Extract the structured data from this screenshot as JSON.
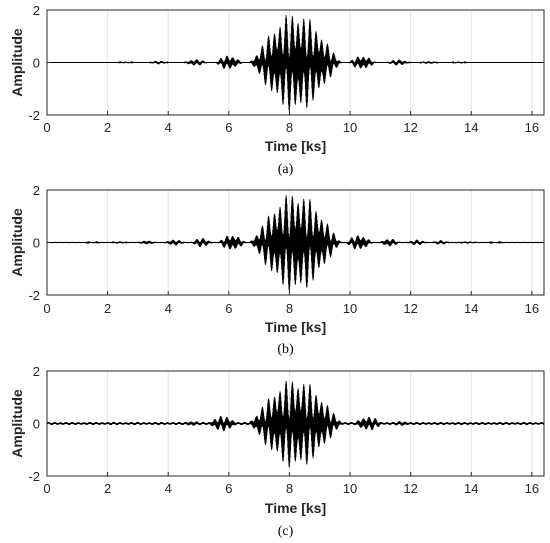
{
  "chart_data": [
    {
      "type": "line",
      "caption": "(a)",
      "xlabel": "Time [ks]",
      "ylabel": "Amplitude",
      "xlim": [
        0,
        16.4
      ],
      "ylim": [
        -2,
        2
      ],
      "xticks": [
        0,
        2,
        4,
        6,
        8,
        10,
        12,
        14,
        16
      ],
      "yticks": [
        -2,
        0,
        2
      ],
      "grid": true,
      "line_color": "#000000",
      "envelope": {
        "main_lobe": {
          "center": 8.2,
          "half_width": 1.55,
          "peak": 1.95
        },
        "side_lobes": [
          {
            "center": 6.0,
            "half_width": 0.45,
            "peak": 0.28
          },
          {
            "center": 10.4,
            "half_width": 0.45,
            "peak": 0.28
          },
          {
            "center": 4.9,
            "half_width": 0.4,
            "peak": 0.13
          },
          {
            "center": 11.6,
            "half_width": 0.4,
            "peak": 0.12
          },
          {
            "center": 3.7,
            "half_width": 0.35,
            "peak": 0.07
          },
          {
            "center": 12.6,
            "half_width": 0.35,
            "peak": 0.06
          },
          {
            "center": 2.6,
            "half_width": 0.3,
            "peak": 0.04
          },
          {
            "center": 13.6,
            "half_width": 0.3,
            "peak": 0.04
          }
        ],
        "floor": 0.005
      }
    },
    {
      "type": "line",
      "caption": "(b)",
      "xlabel": "Time [ks]",
      "ylabel": "Amplitude",
      "xlim": [
        0,
        16.4
      ],
      "ylim": [
        -2,
        2
      ],
      "xticks": [
        0,
        2,
        4,
        6,
        8,
        10,
        12,
        14,
        16
      ],
      "yticks": [
        -2,
        0,
        2
      ],
      "grid": true,
      "line_color": "#000000",
      "envelope": {
        "main_lobe": {
          "center": 8.2,
          "half_width": 1.55,
          "peak": 1.95
        },
        "side_lobes": [
          {
            "center": 6.1,
            "half_width": 0.45,
            "peak": 0.32
          },
          {
            "center": 10.3,
            "half_width": 0.45,
            "peak": 0.3
          },
          {
            "center": 5.1,
            "half_width": 0.35,
            "peak": 0.18
          },
          {
            "center": 11.3,
            "half_width": 0.35,
            "peak": 0.16
          },
          {
            "center": 4.2,
            "half_width": 0.35,
            "peak": 0.12
          },
          {
            "center": 12.2,
            "half_width": 0.35,
            "peak": 0.11
          },
          {
            "center": 3.3,
            "half_width": 0.3,
            "peak": 0.09
          },
          {
            "center": 13.0,
            "half_width": 0.3,
            "peak": 0.09
          },
          {
            "center": 2.4,
            "half_width": 0.3,
            "peak": 0.05
          },
          {
            "center": 13.9,
            "half_width": 0.3,
            "peak": 0.05
          },
          {
            "center": 1.5,
            "half_width": 0.3,
            "peak": 0.03
          },
          {
            "center": 14.8,
            "half_width": 0.3,
            "peak": 0.03
          }
        ],
        "floor": 0.01
      }
    },
    {
      "type": "line",
      "caption": "(c)",
      "xlabel": "Time [ks]",
      "ylabel": "Amplitude",
      "xlim": [
        0,
        16.4
      ],
      "ylim": [
        -2,
        2
      ],
      "xticks": [
        0,
        2,
        4,
        6,
        8,
        10,
        12,
        14,
        16
      ],
      "yticks": [
        -2,
        0,
        2
      ],
      "grid": true,
      "line_color": "#000000",
      "envelope": {
        "main_lobe": {
          "center": 8.2,
          "half_width": 1.6,
          "peak": 1.75
        },
        "side_lobes": [
          {
            "center": 5.8,
            "half_width": 0.5,
            "peak": 0.3
          },
          {
            "center": 10.6,
            "half_width": 0.5,
            "peak": 0.28
          },
          {
            "center": 4.8,
            "half_width": 0.4,
            "peak": 0.1
          },
          {
            "center": 11.7,
            "half_width": 0.4,
            "peak": 0.1
          }
        ],
        "floor": 0.06
      }
    }
  ]
}
